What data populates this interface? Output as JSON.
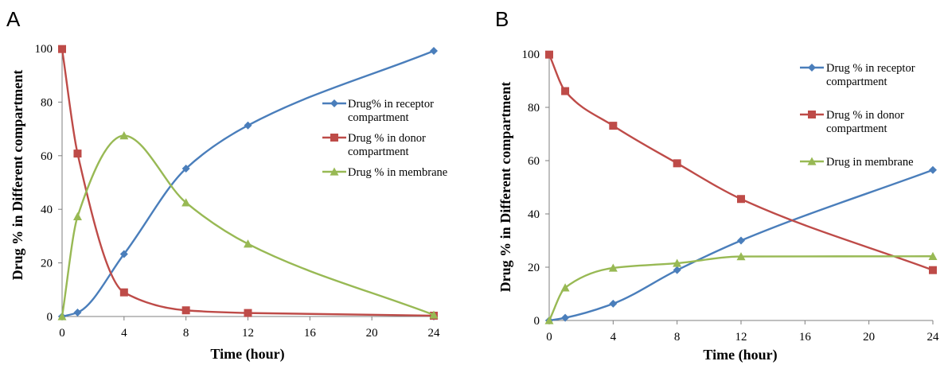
{
  "chart_data": [
    {
      "panel_label": "A",
      "type": "line",
      "xlabel": "Time (hour)",
      "ylabel": "Drug % in Different compartment",
      "xlim": [
        0,
        24
      ],
      "ylim": [
        0,
        100
      ],
      "xticks": [
        0,
        4,
        8,
        12,
        16,
        20,
        24
      ],
      "yticks": [
        0,
        20,
        40,
        60,
        80,
        100
      ],
      "grid": false,
      "legend_position": "right",
      "series": [
        {
          "name": "Drug% in receptor compartment",
          "legend_lines": [
            "Drug% in receptor",
            "compartment"
          ],
          "color": "#4a7ebb",
          "marker": "diamond",
          "x": [
            0,
            1,
            4,
            8,
            12,
            24
          ],
          "y": [
            0,
            1.5,
            23.3,
            55.2,
            71.3,
            99.1
          ]
        },
        {
          "name": "Drug % in donor compartment",
          "legend_lines": [
            "Drug % in donor",
            "compartment"
          ],
          "color": "#be4b48",
          "marker": "square",
          "x": [
            0,
            1,
            4,
            8,
            12,
            24
          ],
          "y": [
            99.8,
            60.8,
            9.0,
            2.3,
            1.3,
            0.3
          ]
        },
        {
          "name": "Drug % in membrane",
          "legend_lines": [
            "Drug % in membrane"
          ],
          "color": "#98b954",
          "marker": "triangle",
          "x": [
            0,
            1,
            4,
            8,
            12,
            24
          ],
          "y": [
            0,
            37.3,
            67.5,
            42.5,
            27.1,
            0.6
          ]
        }
      ]
    },
    {
      "panel_label": "B",
      "type": "line",
      "xlabel": "Time (hour)",
      "ylabel": "Drug % in Different compartment",
      "xlim": [
        0,
        24
      ],
      "ylim": [
        0,
        100
      ],
      "xticks": [
        0,
        4,
        8,
        12,
        16,
        20,
        24
      ],
      "yticks": [
        0,
        20,
        40,
        60,
        80,
        100
      ],
      "grid": false,
      "legend_position": "top-right",
      "series": [
        {
          "name": "Drug % in receptor compartment",
          "legend_lines": [
            "Drug % in receptor",
            "compartment"
          ],
          "color": "#4a7ebb",
          "marker": "diamond",
          "x": [
            0,
            1,
            4,
            8,
            12,
            24
          ],
          "y": [
            0,
            1.0,
            6.3,
            18.9,
            30.0,
            56.5
          ]
        },
        {
          "name": "Drug % in donor compartment",
          "legend_lines": [
            "Drug % in donor",
            "compartment"
          ],
          "color": "#be4b48",
          "marker": "square",
          "x": [
            0,
            1,
            4,
            8,
            12,
            24
          ],
          "y": [
            99.8,
            86.1,
            73.1,
            59.0,
            45.6,
            18.9
          ]
        },
        {
          "name": "Drug in membrane",
          "legend_lines": [
            "Drug in membrane"
          ],
          "color": "#98b954",
          "marker": "triangle",
          "x": [
            0,
            1,
            4,
            8,
            12,
            24
          ],
          "y": [
            0,
            12.3,
            19.7,
            21.5,
            24.0,
            24.1
          ]
        }
      ]
    }
  ]
}
